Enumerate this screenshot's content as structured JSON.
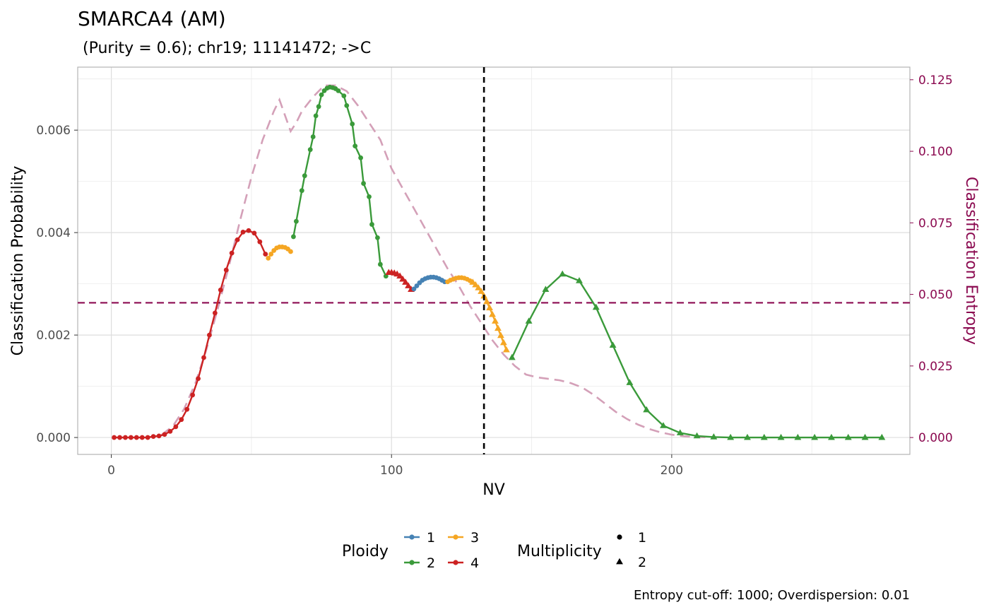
{
  "chart_data": {
    "type": "line",
    "title": "SMARCA4 (AM)",
    "subtitle": " (Purity = 0.6); chr19; 11141472; ->C",
    "xlabel": "NV",
    "ylabel": "Classification Probability",
    "y2label": "Classification Entropy",
    "caption": "Entropy cut-off: 1000; Overdispersion: 0.01",
    "xlim": [
      -12,
      285
    ],
    "ylim": [
      -0.00033,
      0.00723
    ],
    "y2lim": [
      -0.0059,
      0.1294
    ],
    "x_ticks": [
      "0",
      "100",
      "200"
    ],
    "x_tick_values": [
      0,
      100,
      200
    ],
    "y_ticks": [
      "0.000",
      "0.002",
      "0.004",
      "0.006"
    ],
    "y_tick_values": [
      0,
      0.002,
      0.004,
      0.006
    ],
    "y2_ticks": [
      "0.000",
      "0.025",
      "0.050",
      "0.075",
      "0.100",
      "0.125"
    ],
    "y2_tick_values": [
      0,
      0.025,
      0.05,
      0.075,
      0.1,
      0.125
    ],
    "vline_x": 133,
    "hline_y": 0.00263,
    "grid": true,
    "legend_position": "bottom",
    "legends": {
      "ploidy": {
        "title": "Ploidy",
        "items": [
          {
            "label": "1",
            "color": "#4682b4"
          },
          {
            "label": "2",
            "color": "#3a9a3a"
          },
          {
            "label": "3",
            "color": "#f5a623"
          },
          {
            "label": "4",
            "color": "#cc2222"
          }
        ]
      },
      "multiplicity": {
        "title": "Multiplicity",
        "items": [
          {
            "label": "1",
            "shape": "circle"
          },
          {
            "label": "2",
            "shape": "triangle"
          }
        ]
      }
    },
    "series": [
      {
        "ploidy": "4",
        "multiplicity": "1",
        "color": "#cc2222",
        "shape": "circle",
        "x": [
          1,
          3,
          5,
          7,
          9,
          11,
          13,
          15,
          17,
          19,
          21,
          23,
          25,
          27,
          29,
          31,
          33,
          35,
          37,
          39,
          41,
          43,
          45,
          47,
          49,
          51,
          53,
          55
        ],
        "y": [
          0,
          0,
          0,
          0,
          0,
          0,
          0,
          2e-05,
          3e-05,
          6e-05,
          0.00012,
          0.00021,
          0.00035,
          0.00055,
          0.00083,
          0.00115,
          0.00156,
          0.002,
          0.00243,
          0.00288,
          0.00327,
          0.0036,
          0.00386,
          0.00401,
          0.00404,
          0.00399,
          0.00382,
          0.00358
        ]
      },
      {
        "ploidy": "3",
        "multiplicity": "1",
        "color": "#f5a623",
        "shape": "circle",
        "x": [
          56,
          57,
          58,
          59,
          60,
          61,
          62,
          63,
          64
        ],
        "y": [
          0.0035,
          0.00358,
          0.00365,
          0.0037,
          0.00372,
          0.00372,
          0.00371,
          0.00368,
          0.00363
        ]
      },
      {
        "ploidy": "2",
        "multiplicity": "1",
        "color": "#3a9a3a",
        "shape": "circle",
        "x": [
          65,
          66,
          68,
          69,
          71,
          72,
          73,
          74,
          75,
          76,
          77,
          78,
          79,
          80,
          81,
          83,
          84,
          86,
          87,
          89,
          90,
          92,
          93,
          95,
          96,
          98
        ],
        "y": [
          0.00392,
          0.00422,
          0.00482,
          0.00511,
          0.00562,
          0.00587,
          0.00628,
          0.00646,
          0.00669,
          0.00677,
          0.00682,
          0.00684,
          0.00683,
          0.00681,
          0.00677,
          0.00667,
          0.00648,
          0.00612,
          0.00569,
          0.00546,
          0.00496,
          0.0047,
          0.00416,
          0.0039,
          0.00338,
          0.00315
        ]
      },
      {
        "ploidy": "4",
        "multiplicity": "2",
        "color": "#cc2222",
        "shape": "triangle",
        "x": [
          99,
          100,
          101,
          102,
          103,
          104,
          105,
          106,
          107
        ],
        "y": [
          0.00322,
          0.00322,
          0.00321,
          0.00319,
          0.00315,
          0.00309,
          0.00303,
          0.00296,
          0.00289
        ]
      },
      {
        "ploidy": "1",
        "multiplicity": "1",
        "color": "#4682b4",
        "shape": "circle",
        "x": [
          108,
          109,
          110,
          111,
          112,
          113,
          114,
          115,
          116,
          117,
          118,
          119
        ],
        "y": [
          0.0029,
          0.00296,
          0.00302,
          0.00307,
          0.0031,
          0.00312,
          0.00313,
          0.00313,
          0.00312,
          0.0031,
          0.00307,
          0.00304
        ]
      },
      {
        "ploidy": "3",
        "multiplicity": "1",
        "color": "#f5a623",
        "shape": "circle",
        "x": [
          120,
          121,
          122,
          123,
          124,
          125,
          126,
          127,
          128
        ],
        "y": [
          0.00304,
          0.00307,
          0.00309,
          0.00311,
          0.00312,
          0.00312,
          0.00311,
          0.00309,
          0.00306
        ]
      },
      {
        "ploidy": "3",
        "multiplicity": "2",
        "color": "#f5a623",
        "shape": "triangle",
        "x": [
          129,
          130,
          131,
          132,
          133,
          134,
          135,
          136,
          137,
          138,
          139,
          140,
          141
        ],
        "y": [
          0.00303,
          0.00298,
          0.00292,
          0.00285,
          0.00276,
          0.00265,
          0.00253,
          0.0024,
          0.00227,
          0.00213,
          0.00199,
          0.00185,
          0.00171
        ]
      },
      {
        "ploidy": "2",
        "multiplicity": "2",
        "color": "#3a9a3a",
        "shape": "triangle",
        "x": [
          143,
          149,
          155,
          161,
          167,
          173,
          179,
          185,
          191,
          197,
          203,
          209,
          215,
          221,
          227,
          233,
          239,
          245,
          251,
          257,
          263,
          269,
          275
        ],
        "y": [
          0.00156,
          0.00227,
          0.00289,
          0.00319,
          0.00306,
          0.00254,
          0.0018,
          0.00107,
          0.00054,
          0.00023,
          9e-05,
          3e-05,
          1e-05,
          0,
          0,
          0,
          0,
          0,
          0,
          0,
          0,
          0,
          0
        ]
      }
    ],
    "entropy": {
      "color": "#d4a0b8",
      "x": [
        18,
        22,
        26,
        30,
        34,
        38,
        42,
        46,
        50,
        54,
        58,
        60,
        64,
        66,
        68,
        72,
        76,
        80,
        84,
        88,
        92,
        96,
        100,
        104,
        108,
        112,
        116,
        120,
        124,
        128,
        132,
        136,
        140,
        144,
        148,
        152,
        156,
        160,
        164,
        168,
        172,
        176,
        180,
        184,
        188,
        192,
        196,
        200,
        204,
        208,
        212,
        216
      ],
      "y": [
        0.001,
        0.004,
        0.01,
        0.019,
        0.031,
        0.045,
        0.06,
        0.076,
        0.091,
        0.104,
        0.114,
        0.118,
        0.107,
        0.11,
        0.114,
        0.119,
        0.123,
        0.123,
        0.121,
        0.116,
        0.11,
        0.104,
        0.094,
        0.087,
        0.08,
        0.073,
        0.066,
        0.059,
        0.053,
        0.046,
        0.04,
        0.034,
        0.029,
        0.025,
        0.022,
        0.021,
        0.0205,
        0.02,
        0.019,
        0.0175,
        0.015,
        0.012,
        0.009,
        0.0065,
        0.0045,
        0.003,
        0.0018,
        0.001,
        0.0005,
        0.0002,
        0.0001,
        0
      ]
    }
  }
}
